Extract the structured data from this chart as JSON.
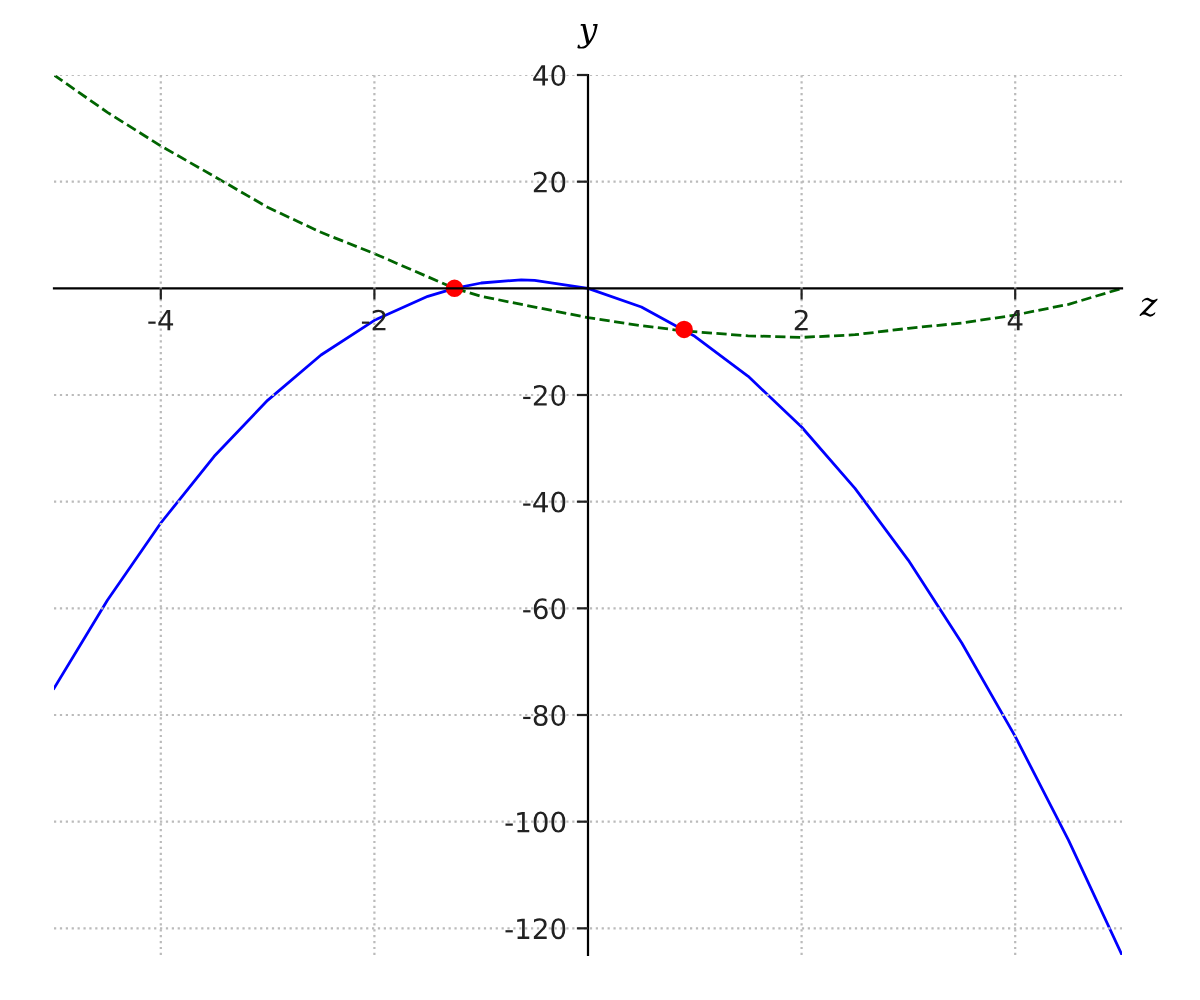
{
  "chart_data": {
    "type": "line",
    "xlabel": "z",
    "ylabel": "y",
    "xlim": [
      -5,
      5
    ],
    "ylim": [
      -125,
      40
    ],
    "xticks": [
      -4,
      -2,
      2,
      4
    ],
    "yticks": [
      -120,
      -100,
      -80,
      -60,
      -40,
      -20,
      20,
      40
    ],
    "grid": true,
    "series": [
      {
        "color": "#0000ff",
        "line_style": "solid",
        "x": [
          -5,
          -4.5,
          -4,
          -3.5,
          -3,
          -2.5,
          -2,
          -1.5,
          -1.25,
          -1,
          -0.625,
          -0.5,
          0,
          0.5,
          1,
          1.5,
          2,
          2.5,
          3,
          3.5,
          4,
          4.5,
          5
        ],
        "values": [
          -75,
          -58.5,
          -44,
          -31.5,
          -21,
          -12.5,
          -6,
          -1.5,
          0,
          1,
          1.6,
          1.5,
          0,
          -3.5,
          -9,
          -16.5,
          -26,
          -37.5,
          -51,
          -66.5,
          -84,
          -103.5,
          -125
        ]
      },
      {
        "color": "#006400",
        "line_style": "dashed",
        "x": [
          -5,
          -4.5,
          -4,
          -3.5,
          -3,
          -2.5,
          -2,
          -1.25,
          -1,
          0,
          0.5,
          0.9,
          1.5,
          2,
          2.5,
          3,
          3.5,
          4,
          4.5,
          5
        ],
        "values": [
          40,
          33,
          26.7,
          21,
          15.2,
          10.5,
          6.5,
          0,
          -1.5,
          -5.5,
          -7,
          -8,
          -8.9,
          -9.2,
          -8.7,
          -7.5,
          -6.5,
          -5,
          -3,
          0
        ]
      },
      {
        "type": "scatter",
        "color": "#ff0000",
        "marker": "circle",
        "x": [
          -1.25,
          0.9
        ],
        "values": [
          0,
          -7.7
        ]
      }
    ]
  }
}
